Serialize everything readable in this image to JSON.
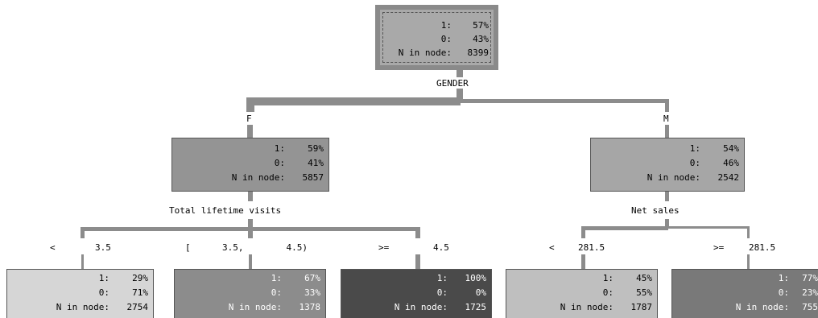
{
  "root": {
    "rows": [
      {
        "label": "1:",
        "value": "57%"
      },
      {
        "label": "0:",
        "value": "43%"
      },
      {
        "label": "N in node:",
        "value": "8399"
      }
    ],
    "split": "GENDER"
  },
  "level1": {
    "left": {
      "branch": "F",
      "rows": [
        {
          "label": "1:",
          "value": "59%"
        },
        {
          "label": "0:",
          "value": "41%"
        },
        {
          "label": "N in node:",
          "value": "5857"
        }
      ],
      "split": "Total lifetime visits"
    },
    "right": {
      "branch": "M",
      "rows": [
        {
          "label": "1:",
          "value": "54%"
        },
        {
          "label": "0:",
          "value": "46%"
        },
        {
          "label": "N in node:",
          "value": "2542"
        }
      ],
      "split": "Net sales"
    }
  },
  "leaves": [
    {
      "branch_op": "<",
      "branch_val": "3.5",
      "rows": [
        {
          "label": "1:",
          "value": "29%"
        },
        {
          "label": "0:",
          "value": "71%"
        },
        {
          "label": "N in node:",
          "value": "2754"
        }
      ],
      "color": "#d6d6d6",
      "text_color": "#000000"
    },
    {
      "branch_op": "[",
      "branch_val": "3.5,        4.5)",
      "rows": [
        {
          "label": "1:",
          "value": "67%"
        },
        {
          "label": "0:",
          "value": "33%"
        },
        {
          "label": "N in node:",
          "value": "1378"
        }
      ],
      "color": "#8c8c8c",
      "text_color": "#ffffff"
    },
    {
      "branch_op": ">=",
      "branch_val": "4.5",
      "rows": [
        {
          "label": "1:",
          "value": "100%"
        },
        {
          "label": "0:",
          "value": "0%"
        },
        {
          "label": "N in node:",
          "value": "1725"
        }
      ],
      "color": "#4a4a4a",
      "text_color": "#ffffff"
    },
    {
      "branch_op": "<",
      "branch_val": "281.5",
      "rows": [
        {
          "label": "1:",
          "value": "45%"
        },
        {
          "label": "0:",
          "value": "55%"
        },
        {
          "label": "N in node:",
          "value": "1787"
        }
      ],
      "color": "#bfbfbf",
      "text_color": "#000000"
    },
    {
      "branch_op": ">=",
      "branch_val": "281.5",
      "rows": [
        {
          "label": "1:",
          "value": "77%"
        },
        {
          "label": "0:",
          "value": "23%"
        },
        {
          "label": "N in node:",
          "value": "755"
        }
      ],
      "color": "#797979",
      "text_color": "#ffffff"
    }
  ],
  "colors": {
    "edge": "#8c8c8c",
    "level1_left_fill": "#949494",
    "level1_right_fill": "#a6a6a6"
  }
}
